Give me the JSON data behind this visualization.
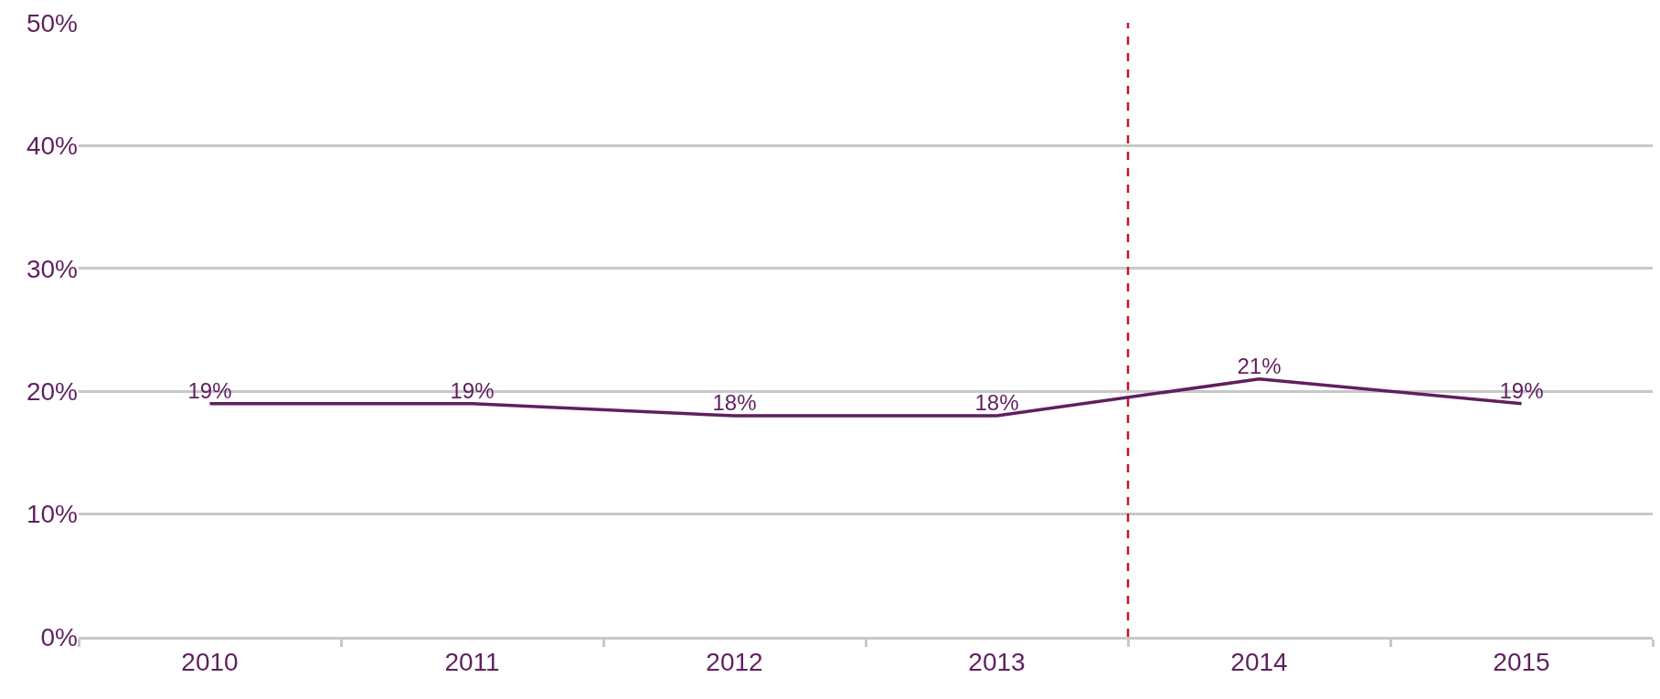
{
  "chart_data": {
    "type": "line",
    "x": [
      2010,
      2011,
      2012,
      2013,
      2014,
      2015
    ],
    "series": [
      {
        "color": "#5f1f5f",
        "values": [
          19,
          19,
          18,
          18,
          21,
          19
        ],
        "value_labels": [
          "19%",
          "19%",
          "18%",
          "18%",
          "21%",
          "19%"
        ]
      }
    ],
    "xlim": [
      2009.5,
      2015.5
    ],
    "xticks": [
      {
        "value": 2009.5,
        "label": null
      },
      {
        "value": 2010,
        "label": "2010"
      },
      {
        "value": 2010.5,
        "label": null
      },
      {
        "value": 2011,
        "label": "2011"
      },
      {
        "value": 2011.5,
        "label": null
      },
      {
        "value": 2012,
        "label": "2012"
      },
      {
        "value": 2012.5,
        "label": null
      },
      {
        "value": 2013,
        "label": "2013"
      },
      {
        "value": 2013.5,
        "label": null
      },
      {
        "value": 2014,
        "label": "2014"
      },
      {
        "value": 2014.5,
        "label": null
      },
      {
        "value": 2015,
        "label": "2015"
      },
      {
        "value": 2015.5,
        "label": null
      }
    ],
    "ylim": [
      0,
      50
    ],
    "yticks": [
      {
        "value": 0,
        "label": "0%"
      },
      {
        "value": 10,
        "label": "10%"
      },
      {
        "value": 20,
        "label": "20%"
      },
      {
        "value": 30,
        "label": "30%"
      },
      {
        "value": 40,
        "label": "40%"
      },
      {
        "value": 50,
        "label": "50%"
      }
    ],
    "ref_lines": [
      {
        "axis": "x",
        "value": 2013.5,
        "color": "#c8102e",
        "line_style": "dashed"
      }
    ],
    "grid": "y",
    "marker": "none",
    "line_style": "solid"
  }
}
